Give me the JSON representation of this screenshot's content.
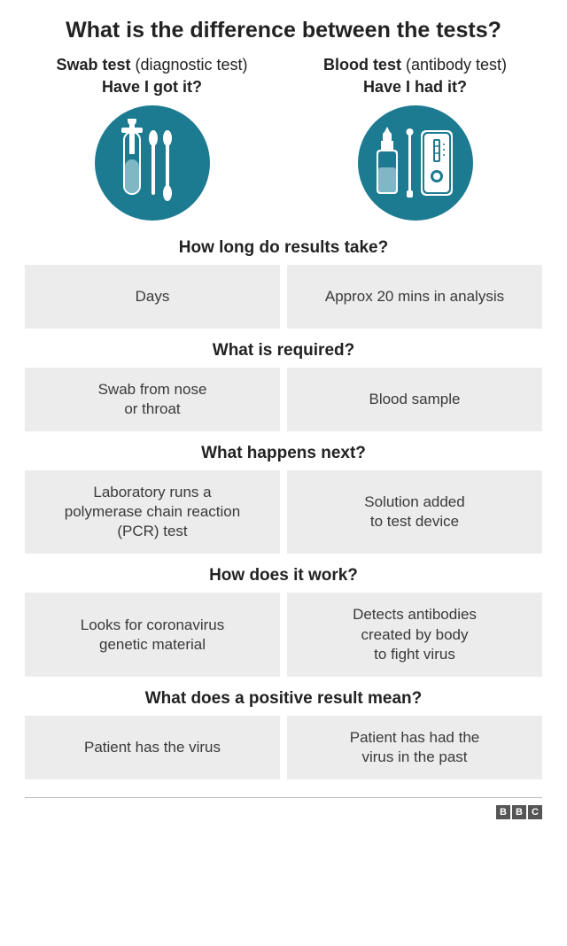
{
  "title": "What is the difference between the tests?",
  "circle_color": "#1c7b91",
  "cell_bg": "#ececec",
  "left": {
    "name_bold": "Swab test",
    "name_paren": "(diagnostic test)",
    "question": "Have I got it?"
  },
  "right": {
    "name_bold": "Blood test",
    "name_paren": "(antibody test)",
    "question": "Have I had it?"
  },
  "sections": [
    {
      "title": "How long do results take?",
      "left": "Days",
      "right": "Approx 20 mins in analysis"
    },
    {
      "title": "What is required?",
      "left": "Swab from nose\nor throat",
      "right": "Blood sample"
    },
    {
      "title": "What happens next?",
      "left": "Laboratory runs a\npolymerase chain reaction\n(PCR) test",
      "right": "Solution added\nto test device"
    },
    {
      "title": "How does it work?",
      "left": "Looks for coronavirus\ngenetic material",
      "right": "Detects antibodies\ncreated by body\nto fight virus"
    },
    {
      "title": "What does a positive result mean?",
      "left": "Patient has the virus",
      "right": "Patient has had the\nvirus in the past"
    }
  ],
  "logo": [
    "B",
    "B",
    "C"
  ],
  "style": {
    "title_fontsize": 25,
    "section_title_fontsize": 19,
    "cell_fontsize": 17,
    "circle_diameter": 130
  }
}
